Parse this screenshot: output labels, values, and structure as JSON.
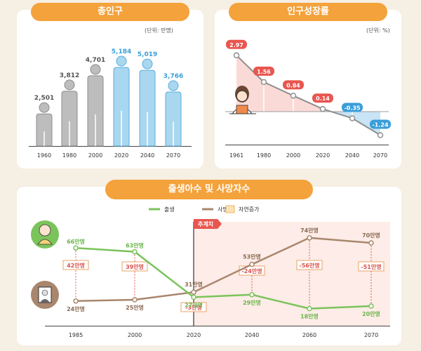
{
  "chart_data": [
    {
      "type": "bar",
      "title": "총인구",
      "unit": "(단위: 만명)",
      "categories": [
        "1960",
        "1980",
        "2000",
        "2020",
        "2040",
        "2070"
      ],
      "values": [
        2501,
        3812,
        4701,
        5184,
        5019,
        3766
      ],
      "value_labels": [
        "2,501",
        "3,812",
        "4,701",
        "5,184",
        "5,019",
        "3,766"
      ],
      "projection_from": "2020",
      "colors": {
        "historic": "#bdbdbd",
        "projected": "#a9d7ef",
        "projected_text": "#3a9ed8"
      }
    },
    {
      "type": "line",
      "title": "인구성장률",
      "unit": "(단위: %)",
      "categories": [
        "1961",
        "1980",
        "2000",
        "2020",
        "2040",
        "2070"
      ],
      "values": [
        2.97,
        1.56,
        0.84,
        0.14,
        -0.35,
        -1.24
      ],
      "value_labels": [
        "2.97",
        "1.56",
        "0.84",
        "0.14",
        "-0.35",
        "-1.24"
      ],
      "colors": {
        "positive": "#e8564f",
        "negative": "#3a9ed8"
      }
    },
    {
      "type": "line",
      "title": "출생아수 및 사망자수",
      "legend": [
        "출생",
        "사망",
        "자연증가"
      ],
      "projection_label": "추계치",
      "categories": [
        "1985",
        "2000",
        "2020",
        "2040",
        "2060",
        "2070"
      ],
      "series": [
        {
          "name": "출생",
          "values": [
            66,
            63,
            27,
            29,
            18,
            20
          ],
          "labels": [
            "66만명",
            "63만명",
            "27만명",
            "29만명",
            "18만명",
            "20만명"
          ],
          "color": "#7bc35b"
        },
        {
          "name": "사망",
          "values": [
            24,
            25,
            31,
            53,
            74,
            70
          ],
          "labels": [
            "24만명",
            "25만명",
            "31만명",
            "53만명",
            "74만명",
            "70만명"
          ],
          "color": "#a9866d"
        }
      ],
      "natural_increase": [
        "42만명",
        "39만명",
        "-3만명",
        "-24만명",
        "-56만명",
        "-51만명"
      ]
    }
  ]
}
